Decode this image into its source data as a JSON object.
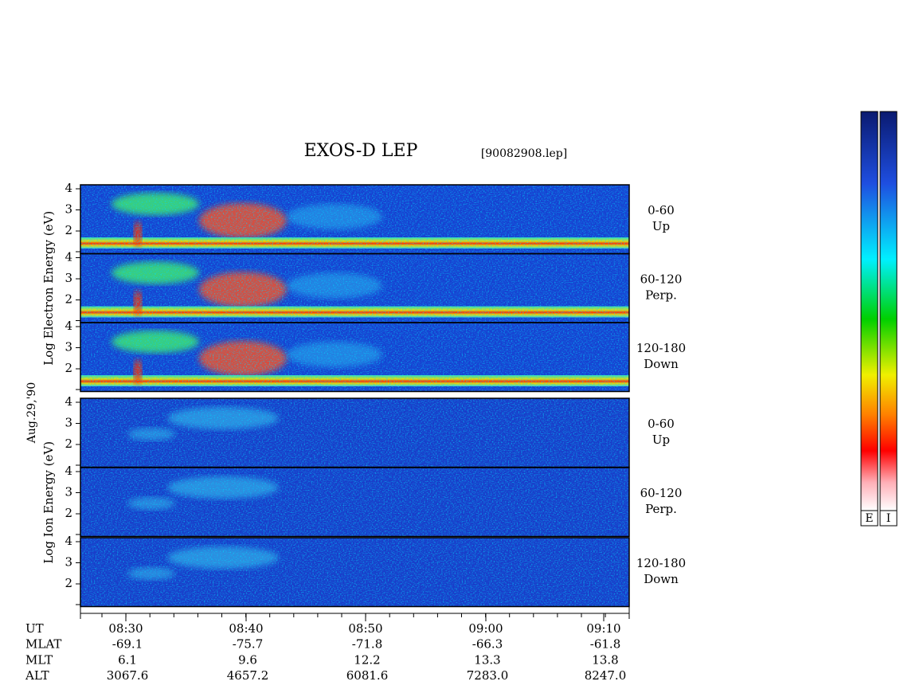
{
  "header": {
    "title": "EXOS-D LEP",
    "file": "[90082908.lep]"
  },
  "date": "Aug.29,'90",
  "groups": [
    {
      "axis_label": "Log Electron Energy (eV)",
      "panels": [
        {
          "angle": "0-60",
          "dir": "Up"
        },
        {
          "angle": "60-120",
          "dir": "Perp."
        },
        {
          "angle": "120-180",
          "dir": "Down"
        }
      ]
    },
    {
      "axis_label": "Log Ion Energy (eV)",
      "panels": [
        {
          "angle": "0-60",
          "dir": "Up"
        },
        {
          "angle": "60-120",
          "dir": "Perp."
        },
        {
          "angle": "120-180",
          "dir": "Down"
        }
      ]
    }
  ],
  "yticks": [
    2,
    3,
    4
  ],
  "time_axis": {
    "rows": [
      {
        "label": "UT",
        "values": [
          "08:30",
          "08:40",
          "08:50",
          "09:00",
          "09:10"
        ]
      },
      {
        "label": "MLAT",
        "values": [
          "-69.1",
          "-75.7",
          "-71.8",
          "-66.3",
          "-61.8"
        ]
      },
      {
        "label": "MLT",
        "values": [
          "6.1",
          "9.6",
          "12.2",
          "13.3",
          "13.8"
        ]
      },
      {
        "label": "ALT",
        "values": [
          "3067.6",
          "4657.2",
          "6081.6",
          "7283.0",
          "8247.0"
        ]
      }
    ]
  },
  "colorbars": [
    "E",
    "I"
  ]
}
